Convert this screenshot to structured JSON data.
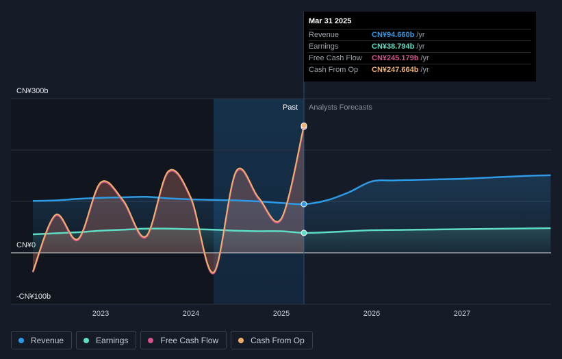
{
  "chart_data": {
    "type": "line",
    "y_axis": {
      "unit_labels": [
        "CN¥300b",
        "CN¥0",
        "-CN¥100b"
      ],
      "ylim": [
        -100,
        300
      ]
    },
    "x_axis": {
      "tick_labels": [
        "2023",
        "2024",
        "2025",
        "2026",
        "2027"
      ],
      "xlim": [
        2022.25,
        2027.98
      ]
    },
    "sections": {
      "past_label": "Past",
      "forecast_label": "Analysts Forecasts",
      "divider_x": 2025.25
    },
    "series": [
      {
        "name": "Revenue",
        "color": "#2f9be6",
        "points": [
          [
            2022.25,
            101
          ],
          [
            2022.5,
            102
          ],
          [
            2022.75,
            105
          ],
          [
            2023.0,
            107
          ],
          [
            2023.25,
            108
          ],
          [
            2023.5,
            109
          ],
          [
            2023.75,
            106
          ],
          [
            2024.0,
            104
          ],
          [
            2024.25,
            103
          ],
          [
            2024.5,
            102
          ],
          [
            2024.75,
            100
          ],
          [
            2025.0,
            97
          ],
          [
            2025.25,
            94.66
          ]
        ],
        "forecast": [
          [
            2025.25,
            94.66
          ],
          [
            2025.5,
            102
          ],
          [
            2025.75,
            118
          ],
          [
            2026.0,
            139
          ],
          [
            2026.25,
            141
          ],
          [
            2026.5,
            142
          ],
          [
            2026.75,
            143
          ],
          [
            2027.0,
            144
          ],
          [
            2027.25,
            146
          ],
          [
            2027.5,
            148
          ],
          [
            2027.75,
            150
          ],
          [
            2027.98,
            151
          ]
        ]
      },
      {
        "name": "Earnings",
        "color": "#5fdcc4",
        "points": [
          [
            2022.25,
            36
          ],
          [
            2022.5,
            38
          ],
          [
            2022.75,
            40
          ],
          [
            2023.0,
            43
          ],
          [
            2023.25,
            45
          ],
          [
            2023.5,
            47
          ],
          [
            2023.75,
            47
          ],
          [
            2024.0,
            46
          ],
          [
            2024.25,
            45
          ],
          [
            2024.5,
            43
          ],
          [
            2024.75,
            42
          ],
          [
            2025.0,
            42
          ],
          [
            2025.25,
            38.79
          ]
        ],
        "forecast": [
          [
            2025.25,
            38.79
          ],
          [
            2025.5,
            40
          ],
          [
            2025.75,
            42
          ],
          [
            2026.0,
            44
          ],
          [
            2026.5,
            45
          ],
          [
            2027.0,
            46
          ],
          [
            2027.5,
            47
          ],
          [
            2027.98,
            48
          ]
        ]
      },
      {
        "name": "Free Cash Flow",
        "color": "#d2548a",
        "points": [
          [
            2022.25,
            -38
          ],
          [
            2022.5,
            72
          ],
          [
            2022.75,
            25
          ],
          [
            2023.0,
            135
          ],
          [
            2023.25,
            100
          ],
          [
            2023.5,
            30
          ],
          [
            2023.75,
            157
          ],
          [
            2024.0,
            105
          ],
          [
            2024.25,
            -40
          ],
          [
            2024.5,
            157
          ],
          [
            2024.75,
            105
          ],
          [
            2025.0,
            65
          ],
          [
            2025.25,
            245.18
          ]
        ]
      },
      {
        "name": "Cash From Op",
        "color": "#f0b26b",
        "points": [
          [
            2022.25,
            -36
          ],
          [
            2022.5,
            74
          ],
          [
            2022.75,
            27
          ],
          [
            2023.0,
            137
          ],
          [
            2023.25,
            102
          ],
          [
            2023.5,
            32
          ],
          [
            2023.75,
            159
          ],
          [
            2024.0,
            107
          ],
          [
            2024.25,
            -38
          ],
          [
            2024.5,
            159
          ],
          [
            2024.75,
            107
          ],
          [
            2025.0,
            67
          ],
          [
            2025.25,
            247.66
          ]
        ]
      }
    ],
    "tooltip": {
      "date": "Mar 31 2025",
      "rows": [
        {
          "label": "Revenue",
          "value": "CN¥94.660b",
          "unit": "/yr",
          "color": "#2f9be6"
        },
        {
          "label": "Earnings",
          "value": "CN¥38.794b",
          "unit": "/yr",
          "color": "#5fdcc4"
        },
        {
          "label": "Free Cash Flow",
          "value": "CN¥245.179b",
          "unit": "/yr",
          "color": "#d2548a"
        },
        {
          "label": "Cash From Op",
          "value": "CN¥247.664b",
          "unit": "/yr",
          "color": "#f0b26b"
        }
      ]
    },
    "highlight_range": [
      2024.25,
      2025.25
    ],
    "grid": true
  },
  "legend": [
    {
      "label": "Revenue",
      "color": "#2f9be6"
    },
    {
      "label": "Earnings",
      "color": "#5fdcc4"
    },
    {
      "label": "Free Cash Flow",
      "color": "#d2548a"
    },
    {
      "label": "Cash From Op",
      "color": "#f0b26b"
    }
  ]
}
